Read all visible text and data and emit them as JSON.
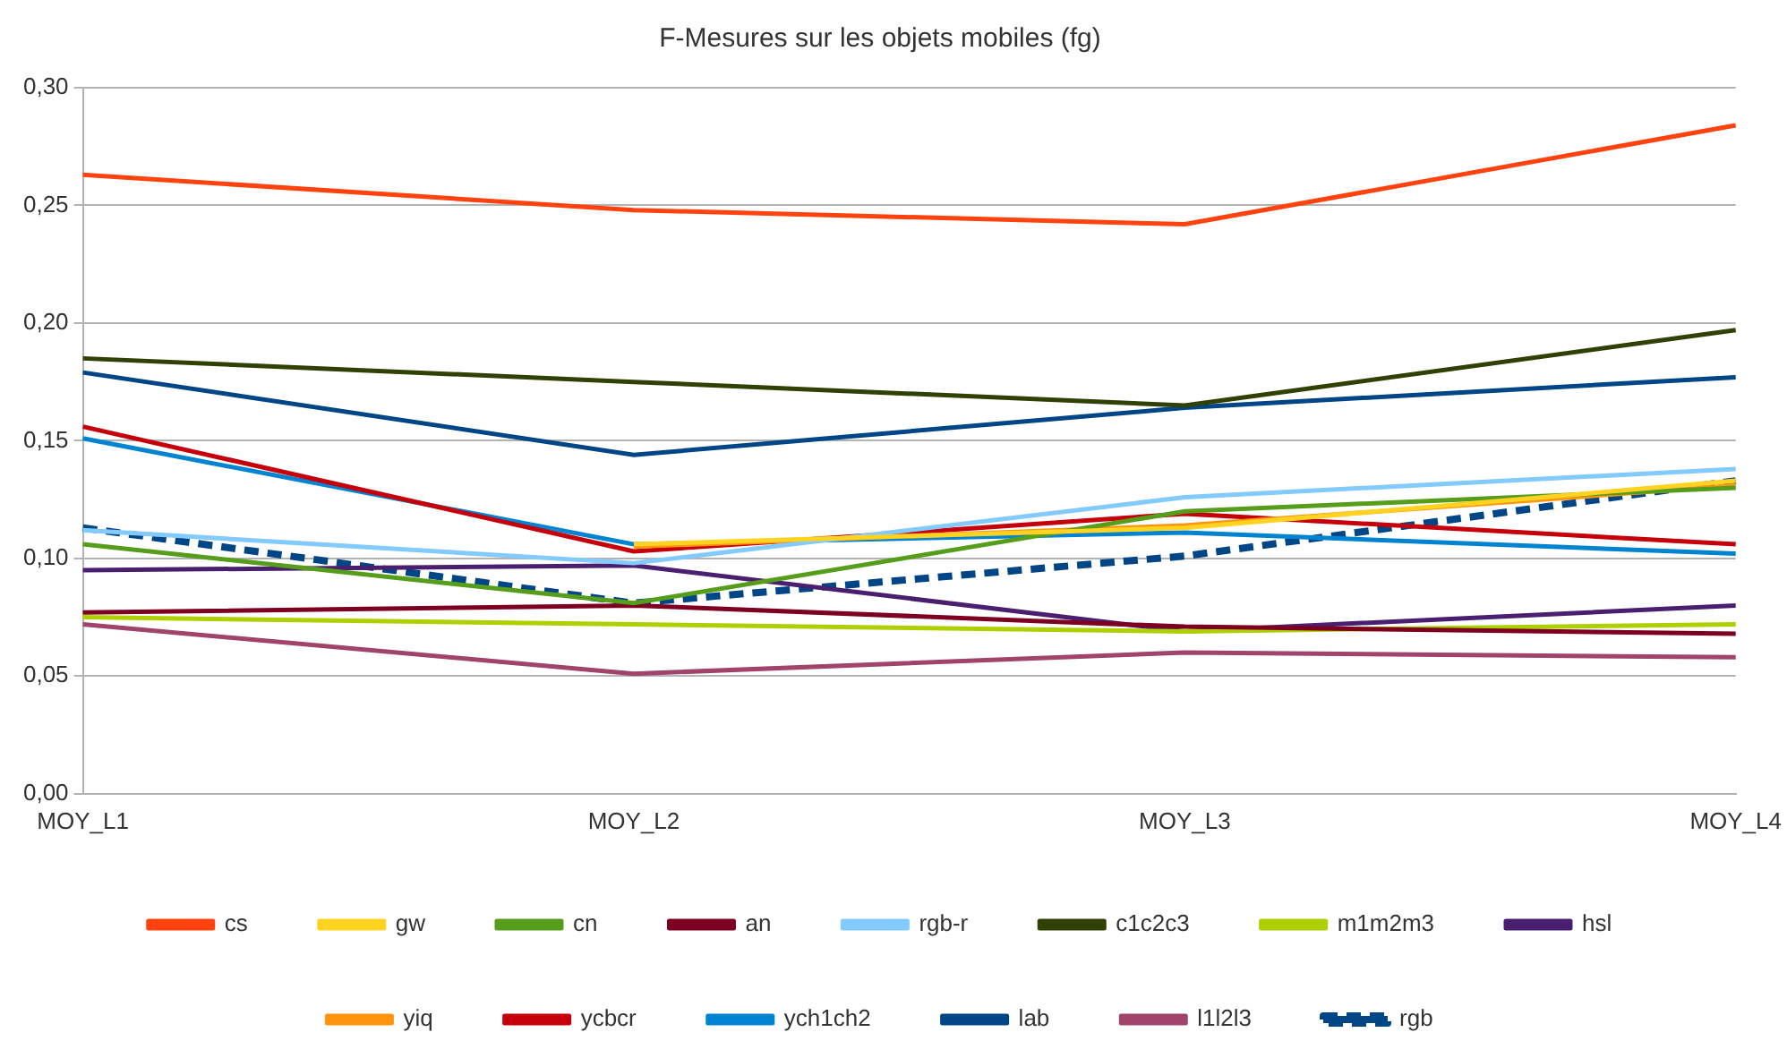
{
  "chart_data": {
    "type": "line",
    "title": "F-Mesures sur les objets mobiles (fg)",
    "categories": [
      "MOY_L1",
      "MOY_L2",
      "MOY_L3",
      "MOY_L4"
    ],
    "series": [
      {
        "name": "cs",
        "color": "#ff420e",
        "values": [
          0.263,
          0.248,
          0.242,
          0.284
        ]
      },
      {
        "name": "gw",
        "color": "#ffd320",
        "values": [
          null,
          0.106,
          0.113,
          0.133
        ]
      },
      {
        "name": "cn",
        "color": "#579d1c",
        "values": [
          0.106,
          0.081,
          0.12,
          0.13
        ]
      },
      {
        "name": "an",
        "color": "#7e0021",
        "values": [
          0.077,
          0.08,
          0.071,
          0.068
        ]
      },
      {
        "name": "rgb-r",
        "color": "#83caff",
        "values": [
          0.112,
          0.098,
          0.126,
          0.138
        ]
      },
      {
        "name": "c1c2c3",
        "color": "#314004",
        "values": [
          0.185,
          0.175,
          0.165,
          0.197
        ]
      },
      {
        "name": "m1m2m3",
        "color": "#aecf00",
        "values": [
          0.075,
          0.072,
          0.069,
          0.072
        ]
      },
      {
        "name": "hsl",
        "color": "#4b1f6f",
        "values": [
          0.095,
          0.097,
          0.069,
          0.08
        ]
      },
      {
        "name": "yiq",
        "color": "#ff950e",
        "values": [
          null,
          0.105,
          0.114,
          0.131
        ]
      },
      {
        "name": "ycbcr",
        "color": "#c5000b",
        "values": [
          0.156,
          0.103,
          0.119,
          0.106
        ]
      },
      {
        "name": "ych1ch2",
        "color": "#0084d1",
        "values": [
          0.151,
          0.106,
          0.111,
          0.102
        ]
      },
      {
        "name": "lab",
        "color": "#004586",
        "values": [
          0.179,
          0.144,
          0.164,
          0.177
        ]
      },
      {
        "name": "l1l2l3",
        "color": "#a0446c",
        "values": [
          0.072,
          0.051,
          0.06,
          0.058
        ]
      },
      {
        "name": "rgb",
        "color": "#004586",
        "line_style": "dashed",
        "values": [
          0.113,
          0.081,
          0.101,
          0.133
        ]
      }
    ],
    "ylim": [
      0,
      0.3
    ],
    "yticks": [
      {
        "value": 0,
        "label": "0,00"
      },
      {
        "value": 0.05,
        "label": "0,05"
      },
      {
        "value": 0.1,
        "label": "0,10"
      },
      {
        "value": 0.15,
        "label": "0,15"
      },
      {
        "value": 0.2,
        "label": "0,20"
      },
      {
        "value": 0.25,
        "label": "0,25"
      },
      {
        "value": 0.3,
        "label": "0,30"
      }
    ],
    "grid": "y",
    "legend": "bottom",
    "marker": "none"
  }
}
